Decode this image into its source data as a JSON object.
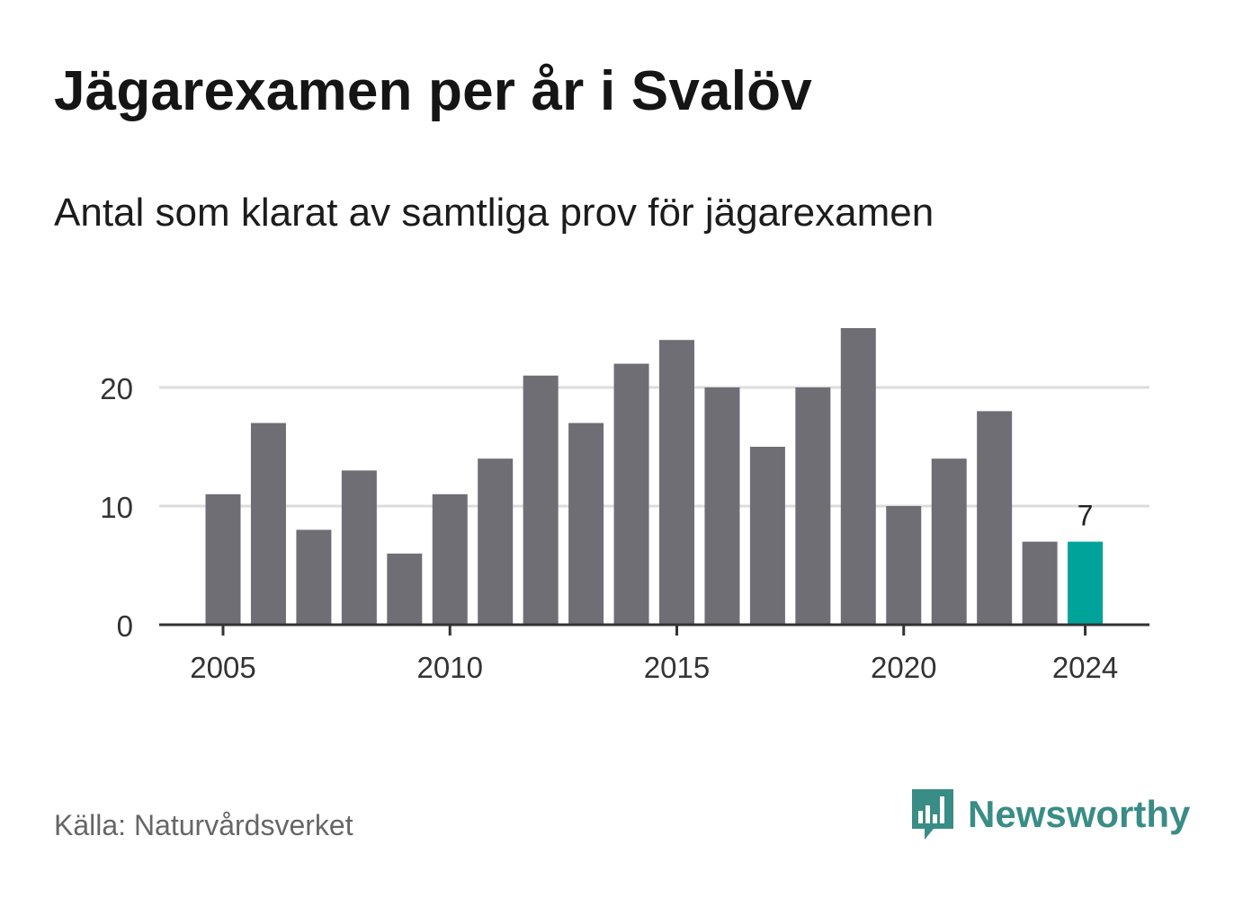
{
  "title": "Jägarexamen per år i Svalöv",
  "subtitle": "Antal som klarat av samtliga prov för jägarexamen",
  "source": "Källa: Naturvårdsverket",
  "brand": {
    "name": "Newsworthy",
    "logo_icon": "bar-chart-speech-bubble-icon"
  },
  "colors": {
    "bar": "#6f6e74",
    "highlight": "#00a39a",
    "grid": "#dcdcdc",
    "axis": "#333333",
    "brand": "#3a8c86"
  },
  "chart_data": {
    "type": "bar",
    "x": [
      2005,
      2006,
      2007,
      2008,
      2009,
      2010,
      2011,
      2012,
      2013,
      2014,
      2015,
      2016,
      2017,
      2018,
      2019,
      2020,
      2021,
      2022,
      2023,
      2024
    ],
    "values": [
      11,
      17,
      8,
      13,
      6,
      11,
      14,
      21,
      17,
      22,
      24,
      20,
      15,
      20,
      25,
      10,
      14,
      18,
      7,
      7
    ],
    "highlight_index": 19,
    "highlight_label": "7",
    "y_ticks": [
      0,
      10,
      20
    ],
    "x_tick_labels": [
      2005,
      2010,
      2015,
      2020,
      2024
    ],
    "ylim": [
      0,
      25
    ],
    "grid": true,
    "xlabel": "",
    "ylabel": ""
  }
}
